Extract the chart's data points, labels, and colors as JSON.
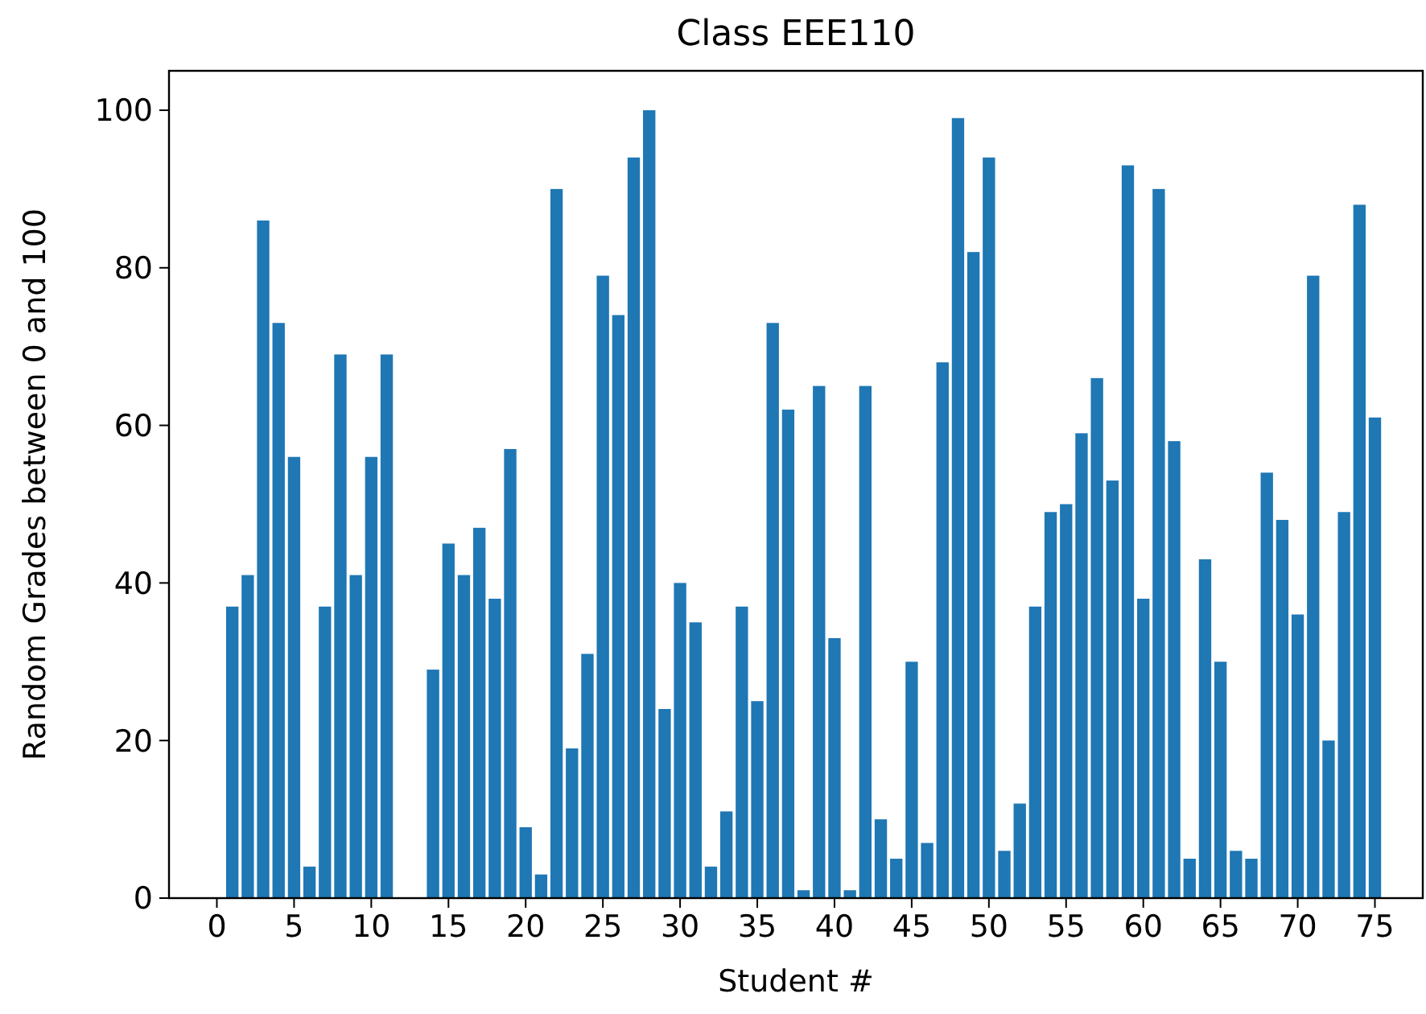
{
  "chart_data": {
    "type": "bar",
    "title": "Class EEE110",
    "xlabel": "Student #",
    "ylabel": "Random Grades between 0 and 100",
    "x": [
      0,
      1,
      2,
      3,
      4,
      5,
      6,
      7,
      8,
      9,
      10,
      11,
      12,
      13,
      14,
      15,
      16,
      17,
      18,
      19,
      20,
      21,
      22,
      23,
      24,
      25,
      26,
      27,
      28,
      29,
      30,
      31,
      32,
      33,
      34,
      35,
      36,
      37,
      38,
      39,
      40,
      41,
      42,
      43,
      44,
      45,
      46,
      47,
      48,
      49,
      50,
      51,
      52,
      53,
      54,
      55,
      56,
      57,
      58,
      59,
      60,
      61,
      62,
      63,
      64,
      65,
      66,
      67,
      68,
      69,
      70,
      71,
      72,
      73,
      74,
      75
    ],
    "values": [
      0,
      37,
      41,
      86,
      73,
      56,
      4,
      37,
      69,
      41,
      56,
      69,
      0,
      0,
      29,
      45,
      41,
      47,
      38,
      57,
      9,
      3,
      90,
      19,
      31,
      79,
      74,
      94,
      100,
      24,
      40,
      35,
      4,
      11,
      37,
      25,
      73,
      62,
      1,
      65,
      33,
      1,
      65,
      10,
      5,
      30,
      7,
      68,
      99,
      82,
      94,
      6,
      12,
      37,
      49,
      50,
      59,
      66,
      53,
      93,
      38,
      90,
      58,
      5,
      43,
      30,
      6,
      5,
      54,
      48,
      36,
      79,
      20,
      49,
      88,
      61
    ],
    "color": "#1f77b4",
    "xlim": [
      -3.1,
      78.1
    ],
    "xticks": [
      0,
      5,
      10,
      15,
      20,
      25,
      30,
      35,
      40,
      45,
      50,
      55,
      60,
      65,
      70,
      75
    ],
    "ylim": [
      0,
      105
    ],
    "yticks": [
      0,
      20,
      40,
      60,
      80,
      100
    ],
    "grid": false
  }
}
